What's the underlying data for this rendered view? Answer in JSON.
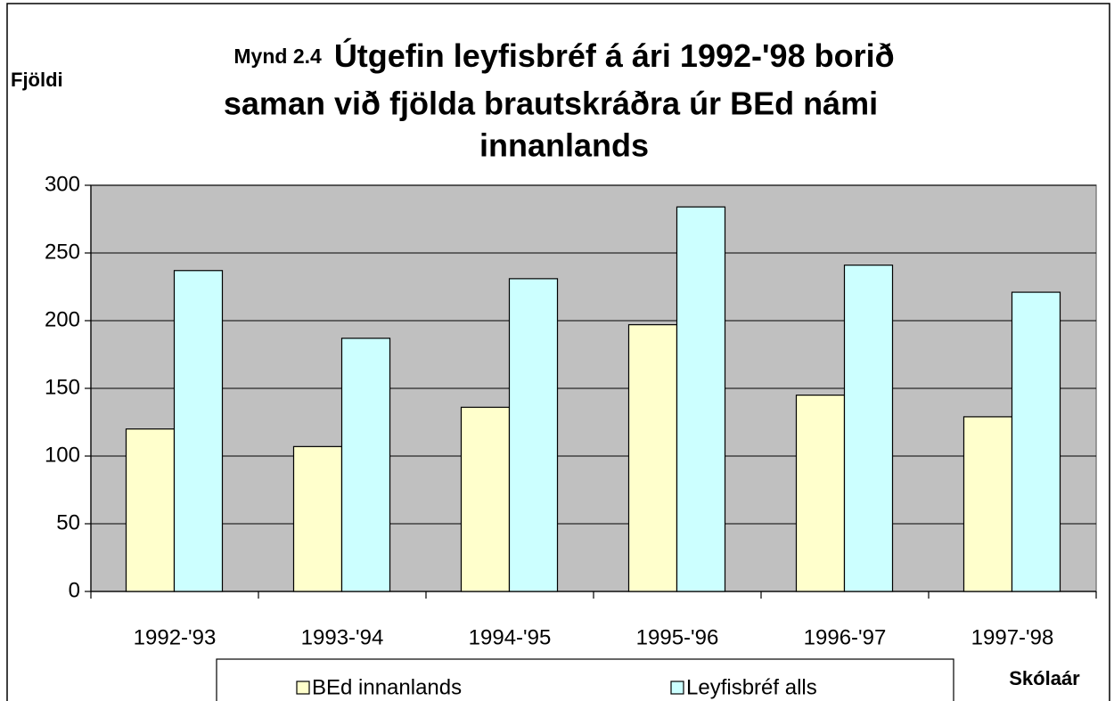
{
  "chart_data": {
    "type": "bar",
    "title_prefix": "Mynd 2.4",
    "title_lines": [
      "Útgefin leyfisbréf á ári 1992-'98 borið",
      "saman við fjölda brautskráðra úr BEd námi",
      "innanlands"
    ],
    "y_label": "Fjöldi",
    "x_label": "Skólaár",
    "categories": [
      "1992-'93",
      "1993-'94",
      "1994-'95",
      "1995-'96",
      "1996-'97",
      "1997-'98"
    ],
    "series": [
      {
        "name": "BEd innanlands",
        "color": "#ffffcc",
        "values": [
          120,
          107,
          136,
          197,
          145,
          129
        ]
      },
      {
        "name": "Leyfisbréf alls",
        "color": "#ccffff",
        "values": [
          237,
          187,
          231,
          284,
          241,
          221
        ]
      }
    ],
    "ylim": [
      0,
      300
    ],
    "yticks": [
      0,
      50,
      100,
      150,
      200,
      250,
      300
    ],
    "grid": true,
    "plot_background": "#c0c0c0",
    "legend": "bottom"
  }
}
